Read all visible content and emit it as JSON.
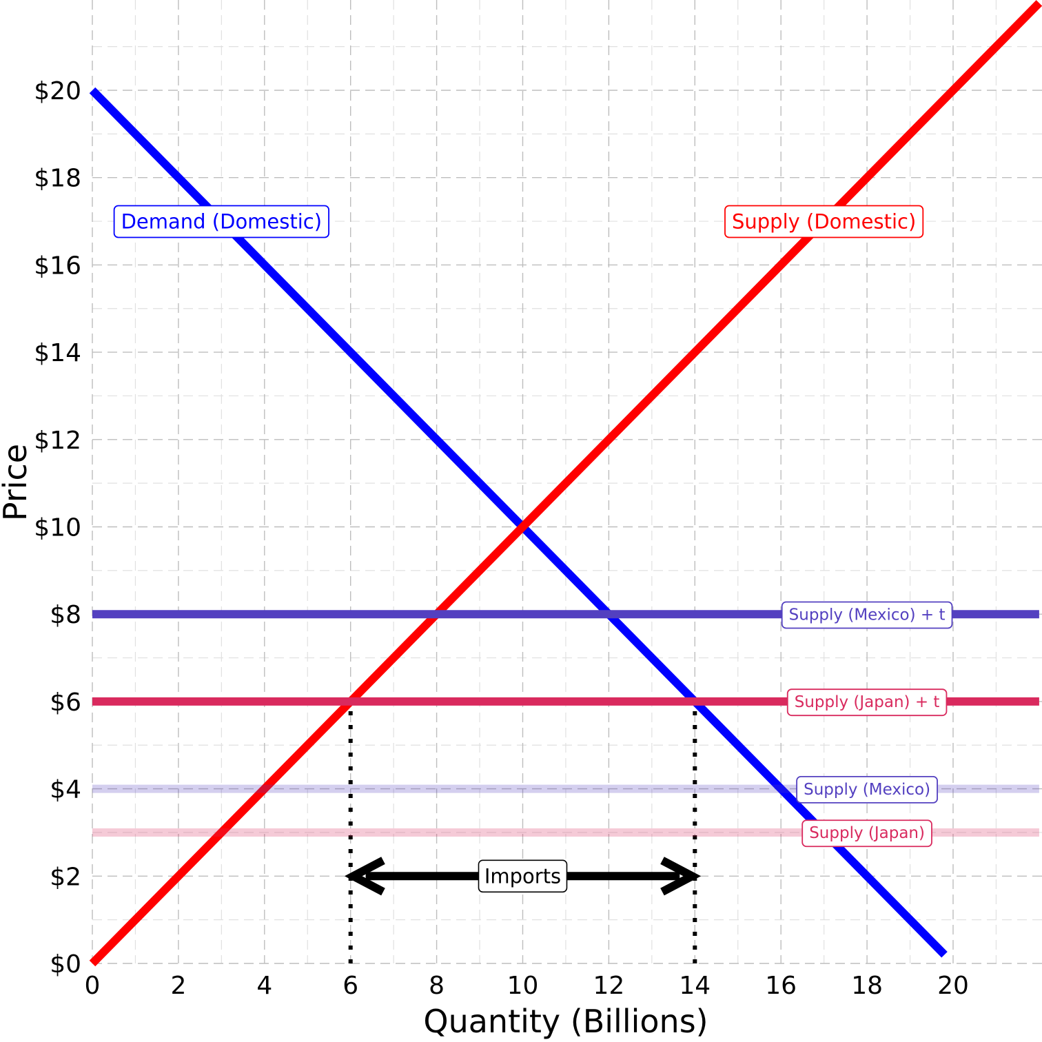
{
  "chart_data": {
    "type": "line",
    "title": "",
    "xlabel": "Quantity (Billions)",
    "ylabel": "Price",
    "xlim": [
      0,
      22
    ],
    "ylim": [
      0,
      21.5
    ],
    "grid": true,
    "x_ticks": [
      0,
      2,
      4,
      6,
      8,
      10,
      12,
      14,
      16,
      18,
      20
    ],
    "x_tick_labels": [
      "0",
      "2",
      "4",
      "6",
      "8",
      "10",
      "12",
      "14",
      "16",
      "18",
      "20"
    ],
    "y_ticks": [
      0,
      2,
      4,
      6,
      8,
      10,
      12,
      14,
      16,
      18,
      20
    ],
    "y_tick_labels": [
      "$0",
      "$2",
      "$4",
      "$6",
      "$8",
      "$10",
      "$12",
      "$14",
      "$16",
      "$18",
      "$20"
    ],
    "series": [
      {
        "name": "Demand (Domestic)",
        "color": "#0000ff",
        "x": [
          0,
          19.8
        ],
        "y": [
          20,
          0.2
        ],
        "label_at": [
          3,
          17
        ]
      },
      {
        "name": "Supply (Domestic)",
        "color": "#ff0000",
        "x": [
          0,
          22
        ],
        "y": [
          0,
          22
        ],
        "label_at": [
          17,
          17
        ]
      },
      {
        "name": "Supply (Mexico) + t",
        "color": "#5340c0",
        "x": [
          0,
          22
        ],
        "y": [
          8,
          8
        ],
        "label_at": [
          18,
          8
        ]
      },
      {
        "name": "Supply (Japan) + t",
        "color": "#d92a5e",
        "x": [
          0,
          22
        ],
        "y": [
          6,
          6
        ],
        "label_at": [
          18,
          6
        ]
      },
      {
        "name": "Supply (Mexico)",
        "color": "#5340c0",
        "faded": true,
        "x": [
          0,
          22
        ],
        "y": [
          4,
          4
        ],
        "label_at": [
          18,
          4
        ]
      },
      {
        "name": "Supply (Japan)",
        "color": "#d92a5e",
        "faded": true,
        "x": [
          0,
          22
        ],
        "y": [
          3,
          3
        ],
        "label_at": [
          18,
          3
        ]
      }
    ],
    "reference_lines": [
      {
        "x": 6,
        "y_from": 0,
        "y_to": 6
      },
      {
        "x": 14,
        "y_from": 0,
        "y_to": 6
      }
    ],
    "annotations": [
      {
        "text": "Imports",
        "type": "double-arrow",
        "x_from": 6,
        "x_to": 14,
        "y": 2
      }
    ]
  }
}
